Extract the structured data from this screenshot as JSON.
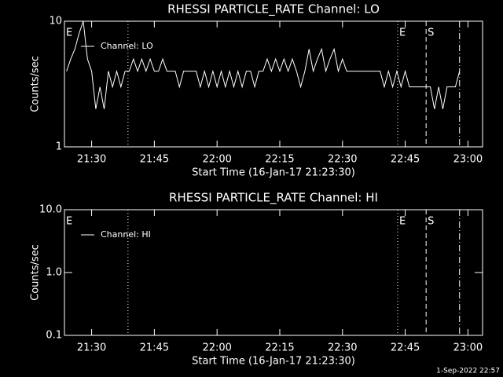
{
  "chart_data": [
    {
      "type": "line",
      "title": "RHESSI PARTICLE_RATE Channel: LO",
      "xlabel": "Start Time (16-Jan-17 21:23:30)",
      "ylabel": "Counts/sec",
      "log_y": true,
      "color": "#ffffff",
      "xlim": [
        1283.5,
        1383.5
      ],
      "xticks": [
        {
          "value": 1290,
          "label": "21:30"
        },
        {
          "value": 1305,
          "label": "21:45"
        },
        {
          "value": 1320,
          "label": "22:00"
        },
        {
          "value": 1335,
          "label": "22:15"
        },
        {
          "value": 1350,
          "label": "22:30"
        },
        {
          "value": 1365,
          "label": "22:45"
        },
        {
          "value": 1380,
          "label": "23:00"
        }
      ],
      "ylim": [
        1,
        10
      ],
      "yticks": [
        1,
        10
      ],
      "series": [
        {
          "name": "Channel: LO",
          "color": "#ffffff",
          "x": [
            1284,
            1285,
            1286,
            1287,
            1288,
            1289,
            1290,
            1291,
            1292,
            1293,
            1294,
            1295,
            1296,
            1297,
            1298,
            1299,
            1300,
            1301,
            1302,
            1303,
            1304,
            1305,
            1306,
            1307,
            1308,
            1309,
            1310,
            1311,
            1312,
            1313,
            1314,
            1315,
            1316,
            1317,
            1318,
            1319,
            1320,
            1321,
            1322,
            1323,
            1324,
            1325,
            1326,
            1327,
            1328,
            1329,
            1330,
            1331,
            1332,
            1333,
            1334,
            1335,
            1336,
            1337,
            1338,
            1339,
            1340,
            1341,
            1342,
            1343,
            1344,
            1345,
            1346,
            1347,
            1348,
            1349,
            1350,
            1351,
            1352,
            1353,
            1354,
            1355,
            1356,
            1357,
            1358,
            1359,
            1360,
            1361,
            1362,
            1363,
            1364,
            1365,
            1366,
            1367,
            1368,
            1369,
            1370,
            1371,
            1372,
            1373,
            1374,
            1375,
            1376,
            1377,
            1378
          ],
          "values": [
            4,
            5,
            6,
            8,
            10,
            5,
            4,
            2,
            3,
            2,
            4,
            3,
            4,
            3,
            4,
            4,
            5,
            4,
            5,
            4,
            5,
            4,
            4,
            5,
            4,
            4,
            4,
            3,
            4,
            4,
            4,
            4,
            3,
            4,
            3,
            4,
            3,
            4,
            3,
            4,
            3,
            4,
            3,
            4,
            4,
            3,
            4,
            4,
            5,
            4,
            5,
            4,
            5,
            4,
            5,
            4,
            3,
            4,
            6,
            4,
            5,
            6,
            4,
            5,
            6,
            4,
            5,
            4,
            4,
            4,
            4,
            4,
            4,
            4,
            4,
            4,
            3,
            4,
            3,
            4,
            3,
            4,
            3,
            3,
            3,
            3,
            3,
            3,
            2,
            3,
            2,
            3,
            3,
            3,
            4
          ]
        }
      ],
      "vlines": [
        {
          "x": 1298.7,
          "style": "dotted"
        },
        {
          "x": 1363.2,
          "style": "dotted"
        },
        {
          "x": 1370,
          "style": "dashed"
        },
        {
          "x": 1378,
          "style": "dashdot"
        }
      ],
      "annotations": [
        {
          "x": 1283.5,
          "text": "E"
        },
        {
          "x": 1363.2,
          "text": "E"
        },
        {
          "x": 1370,
          "text": "S"
        }
      ]
    },
    {
      "type": "line",
      "title": "RHESSI PARTICLE_RATE Channel: HI",
      "xlabel": "Start Time (16-Jan-17 21:23:30)",
      "ylabel": "Counts/sec",
      "log_y": true,
      "color": "#ffffff",
      "xlim": [
        1283.5,
        1383.5
      ],
      "xticks": [
        {
          "value": 1290,
          "label": "21:30"
        },
        {
          "value": 1305,
          "label": "21:45"
        },
        {
          "value": 1320,
          "label": "22:00"
        },
        {
          "value": 1335,
          "label": "22:15"
        },
        {
          "value": 1350,
          "label": "22:30"
        },
        {
          "value": 1365,
          "label": "22:45"
        },
        {
          "value": 1380,
          "label": "23:00"
        }
      ],
      "ylim": [
        0.1,
        10
      ],
      "yticks": [
        0.1,
        {
          "value": 1,
          "label": "1.0"
        },
        {
          "value": 10,
          "label": "10.0"
        }
      ],
      "series": [
        {
          "name": "Channel: HI",
          "color": "#ffffff",
          "x": [],
          "values": []
        }
      ],
      "vlines": [
        {
          "x": 1298.7,
          "style": "dotted"
        },
        {
          "x": 1363.2,
          "style": "dotted"
        },
        {
          "x": 1370,
          "style": "dashed"
        },
        {
          "x": 1378,
          "style": "dashdot"
        }
      ],
      "annotations": [
        {
          "x": 1283.5,
          "text": "E"
        },
        {
          "x": 1363.2,
          "text": "E"
        },
        {
          "x": 1370,
          "text": "S"
        }
      ]
    }
  ],
  "footer": "1-Sep-2022 22:57"
}
